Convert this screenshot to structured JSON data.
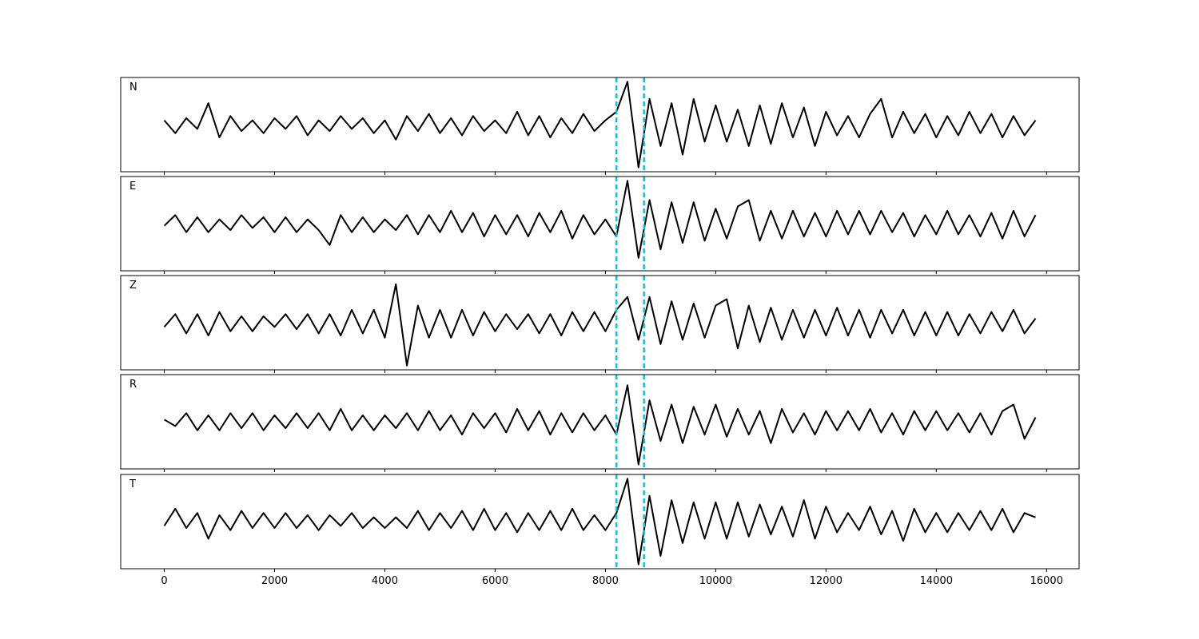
{
  "chart_data": {
    "type": "line",
    "x": [
      0,
      200,
      400,
      600,
      800,
      1000,
      1200,
      1400,
      1600,
      1800,
      2000,
      2200,
      2400,
      2600,
      2800,
      3000,
      3200,
      3400,
      3600,
      3800,
      4000,
      4200,
      4400,
      4600,
      4800,
      5000,
      5200,
      5400,
      5600,
      5800,
      6000,
      6200,
      6400,
      6600,
      6800,
      7000,
      7200,
      7400,
      7600,
      7800,
      8000,
      8200,
      8400,
      8600,
      8800,
      9000,
      9200,
      9400,
      9600,
      9800,
      10000,
      10200,
      10400,
      10600,
      10800,
      11000,
      11200,
      11400,
      11600,
      11800,
      12000,
      12200,
      12400,
      12600,
      12800,
      13000,
      13200,
      13400,
      13600,
      13800,
      14000,
      14200,
      14400,
      14600,
      14800,
      15000,
      15200,
      15400,
      15600,
      15800
    ],
    "xlim": [
      -790,
      16590
    ],
    "xticks": [
      0,
      2000,
      4000,
      6000,
      8000,
      10000,
      12000,
      14000,
      16000
    ],
    "ylim": [
      -1.1,
      1.1
    ],
    "vlines": [
      8200,
      8700
    ],
    "vline_color": "#17becf",
    "series": [
      {
        "name": "N",
        "color": "#000000",
        "values": [
          0.1,
          -0.2,
          0.15,
          -0.1,
          0.5,
          -0.3,
          0.2,
          -0.15,
          0.1,
          -0.2,
          0.15,
          -0.1,
          0.2,
          -0.25,
          0.1,
          -0.15,
          0.2,
          -0.1,
          0.15,
          -0.2,
          0.1,
          -0.35,
          0.2,
          -0.15,
          0.25,
          -0.2,
          0.15,
          -0.25,
          0.2,
          -0.15,
          0.1,
          -0.2,
          0.3,
          -0.25,
          0.2,
          -0.3,
          0.15,
          -0.2,
          0.25,
          -0.15,
          0.1,
          0.3,
          1.0,
          -1.0,
          0.6,
          -0.5,
          0.5,
          -0.7,
          0.6,
          -0.4,
          0.45,
          -0.4,
          0.35,
          -0.5,
          0.45,
          -0.45,
          0.5,
          -0.3,
          0.4,
          -0.5,
          0.3,
          -0.25,
          0.2,
          -0.3,
          0.25,
          0.6,
          -0.3,
          0.3,
          -0.2,
          0.25,
          -0.3,
          0.2,
          -0.25,
          0.3,
          -0.2,
          0.25,
          -0.3,
          0.2,
          -0.25,
          0.1
        ]
      },
      {
        "name": "E",
        "color": "#000000",
        "values": [
          -0.05,
          0.2,
          -0.2,
          0.15,
          -0.2,
          0.1,
          -0.15,
          0.2,
          -0.1,
          0.15,
          -0.2,
          0.15,
          -0.2,
          0.1,
          -0.15,
          -0.5,
          0.2,
          -0.2,
          0.15,
          -0.2,
          0.1,
          -0.15,
          0.2,
          -0.25,
          0.2,
          -0.2,
          0.3,
          -0.2,
          0.25,
          -0.3,
          0.2,
          -0.25,
          0.2,
          -0.3,
          0.25,
          -0.2,
          0.3,
          -0.35,
          0.2,
          -0.25,
          0.1,
          -0.3,
          1.0,
          -0.8,
          0.55,
          -0.6,
          0.5,
          -0.45,
          0.5,
          -0.4,
          0.35,
          -0.35,
          0.4,
          0.55,
          -0.4,
          0.3,
          -0.35,
          0.3,
          -0.3,
          0.25,
          -0.3,
          0.3,
          -0.25,
          0.3,
          -0.25,
          0.3,
          -0.2,
          0.25,
          -0.3,
          0.2,
          -0.25,
          0.3,
          -0.25,
          0.2,
          -0.3,
          0.25,
          -0.35,
          0.3,
          -0.3,
          0.2
        ]
      },
      {
        "name": "Z",
        "color": "#000000",
        "values": [
          -0.1,
          0.2,
          -0.25,
          0.2,
          -0.3,
          0.25,
          -0.2,
          0.15,
          -0.2,
          0.15,
          -0.1,
          0.2,
          -0.15,
          0.2,
          -0.25,
          0.2,
          -0.3,
          0.3,
          -0.25,
          0.3,
          -0.35,
          0.9,
          -1.0,
          0.4,
          -0.35,
          0.3,
          -0.35,
          0.3,
          -0.3,
          0.25,
          -0.2,
          0.2,
          -0.15,
          0.2,
          -0.25,
          0.2,
          -0.3,
          0.25,
          -0.2,
          0.25,
          -0.2,
          0.3,
          0.6,
          -0.4,
          0.6,
          -0.5,
          0.5,
          -0.4,
          0.45,
          -0.35,
          0.4,
          0.55,
          -0.6,
          0.4,
          -0.45,
          0.35,
          -0.4,
          0.3,
          -0.35,
          0.3,
          -0.3,
          0.35,
          -0.3,
          0.3,
          -0.35,
          0.3,
          -0.25,
          0.3,
          -0.3,
          0.25,
          -0.3,
          0.25,
          -0.3,
          0.2,
          -0.25,
          0.25,
          -0.2,
          0.3,
          -0.25,
          0.1
        ]
      },
      {
        "name": "R",
        "color": "#000000",
        "values": [
          0.05,
          -0.1,
          0.2,
          -0.2,
          0.15,
          -0.2,
          0.2,
          -0.15,
          0.2,
          -0.2,
          0.15,
          -0.15,
          0.2,
          -0.15,
          0.2,
          -0.2,
          0.3,
          -0.2,
          0.15,
          -0.2,
          0.15,
          -0.15,
          0.2,
          -0.2,
          0.25,
          -0.2,
          0.15,
          -0.3,
          0.2,
          -0.15,
          0.2,
          -0.25,
          0.3,
          -0.2,
          0.25,
          -0.3,
          0.2,
          -0.25,
          0.2,
          -0.2,
          0.15,
          -0.3,
          0.85,
          -1.0,
          0.5,
          -0.45,
          0.4,
          -0.5,
          0.35,
          -0.3,
          0.4,
          -0.35,
          0.3,
          -0.3,
          0.25,
          -0.5,
          0.3,
          -0.25,
          0.2,
          -0.3,
          0.25,
          -0.2,
          0.25,
          -0.2,
          0.3,
          -0.25,
          0.2,
          -0.3,
          0.25,
          -0.2,
          0.25,
          -0.2,
          0.2,
          -0.25,
          0.2,
          -0.3,
          0.25,
          0.4,
          -0.4,
          0.1
        ]
      },
      {
        "name": "T",
        "color": "#000000",
        "values": [
          -0.1,
          0.3,
          -0.15,
          0.2,
          -0.4,
          0.15,
          -0.2,
          0.25,
          -0.15,
          0.2,
          -0.15,
          0.2,
          -0.15,
          0.15,
          -0.2,
          0.15,
          -0.1,
          0.2,
          -0.15,
          0.1,
          -0.15,
          0.1,
          -0.15,
          0.25,
          -0.2,
          0.2,
          -0.15,
          0.25,
          -0.2,
          0.3,
          -0.2,
          0.2,
          -0.25,
          0.2,
          -0.2,
          0.25,
          -0.2,
          0.3,
          -0.2,
          0.15,
          -0.2,
          0.2,
          1.0,
          -1.0,
          0.6,
          -0.8,
          0.5,
          -0.5,
          0.45,
          -0.4,
          0.45,
          -0.4,
          0.45,
          -0.35,
          0.4,
          -0.3,
          0.35,
          -0.35,
          0.5,
          -0.4,
          0.35,
          -0.25,
          0.2,
          -0.2,
          0.35,
          -0.3,
          0.25,
          -0.45,
          0.3,
          -0.25,
          0.2,
          -0.25,
          0.2,
          -0.2,
          0.25,
          -0.2,
          0.3,
          -0.25,
          0.2,
          0.1
        ]
      }
    ]
  }
}
